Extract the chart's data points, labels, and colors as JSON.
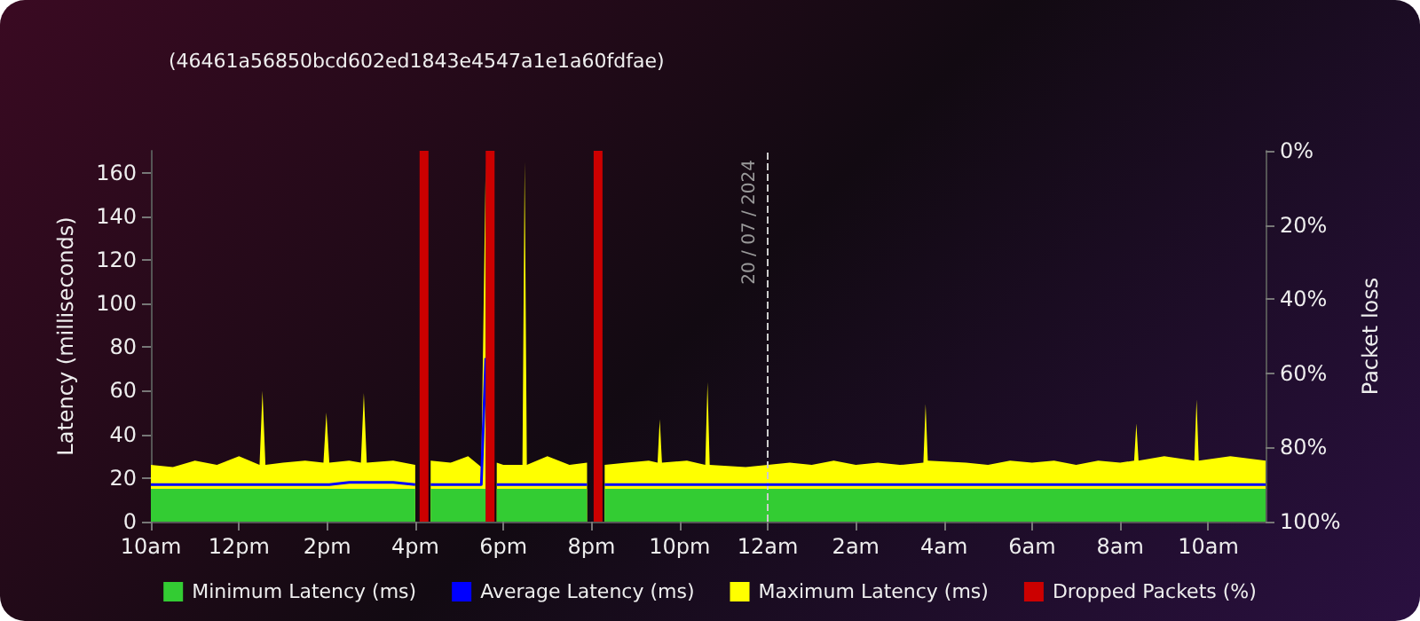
{
  "chart_data": {
    "type": "area",
    "subtitle": "(46461a56850bcd602ed1843e4547a1e1a60fdfae)",
    "ylabel": "Latency (milliseconds)",
    "y2label": "Packet loss",
    "x": [
      "2024-07-19T10:00",
      "2024-07-19T10:30",
      "2024-07-19T11:00",
      "2024-07-19T11:30",
      "2024-07-19T12:00",
      "2024-07-19T12:28",
      "2024-07-19T12:32",
      "2024-07-19T12:36",
      "2024-07-19T13:00",
      "2024-07-19T13:30",
      "2024-07-19T13:55",
      "2024-07-19T13:59",
      "2024-07-19T14:03",
      "2024-07-19T14:30",
      "2024-07-19T14:46",
      "2024-07-19T14:50",
      "2024-07-19T14:54",
      "2024-07-19T15:30",
      "2024-07-19T16:00",
      "2024-07-19T16:12",
      "2024-07-19T16:21",
      "2024-07-19T16:48",
      "2024-07-19T17:12",
      "2024-07-19T17:30",
      "2024-07-19T17:36",
      "2024-07-19T17:42",
      "2024-07-19T17:51",
      "2024-07-19T18:00",
      "2024-07-19T18:26",
      "2024-07-19T18:29",
      "2024-07-19T18:32",
      "2024-07-19T19:00",
      "2024-07-19T19:30",
      "2024-07-19T19:54",
      "2024-07-19T20:09",
      "2024-07-19T20:18",
      "2024-07-19T20:48",
      "2024-07-19T21:18",
      "2024-07-19T21:30",
      "2024-07-19T21:33",
      "2024-07-19T21:36",
      "2024-07-19T22:10",
      "2024-07-19T22:35",
      "2024-07-19T22:38",
      "2024-07-19T22:41",
      "2024-07-19T23:30",
      "2024-07-20T00:00",
      "2024-07-20T00:30",
      "2024-07-20T01:00",
      "2024-07-20T01:30",
      "2024-07-20T02:00",
      "2024-07-20T02:30",
      "2024-07-20T03:00",
      "2024-07-20T03:32",
      "2024-07-20T03:35",
      "2024-07-20T03:38",
      "2024-07-20T04:30",
      "2024-07-20T05:00",
      "2024-07-20T05:30",
      "2024-07-20T06:00",
      "2024-07-20T06:30",
      "2024-07-20T07:00",
      "2024-07-20T07:30",
      "2024-07-20T08:00",
      "2024-07-20T08:19",
      "2024-07-20T08:22",
      "2024-07-20T08:25",
      "2024-07-20T09:00",
      "2024-07-20T09:41",
      "2024-07-20T09:44",
      "2024-07-20T09:47",
      "2024-07-20T10:30",
      "2024-07-20T11:18"
    ],
    "series": [
      {
        "name": "Minimum Latency (ms)",
        "color": "#33cc33",
        "values": [
          15,
          15,
          15,
          15,
          15,
          15,
          15,
          15,
          15,
          15,
          15,
          15,
          15,
          15,
          15,
          15,
          15,
          15,
          15,
          null,
          15,
          15,
          15,
          15,
          15,
          null,
          15,
          15,
          15,
          15,
          15,
          15,
          15,
          15,
          null,
          15,
          15,
          15,
          15,
          15,
          15,
          15,
          15,
          15,
          15,
          15,
          15,
          15,
          15,
          15,
          15,
          15,
          15,
          15,
          15,
          15,
          15,
          15,
          15,
          15,
          15,
          15,
          15,
          15,
          15,
          15,
          15,
          15,
          15,
          15,
          15,
          15,
          15
        ]
      },
      {
        "name": "Average Latency (ms)",
        "type": "line",
        "color": "#0000ff",
        "values": [
          17,
          17,
          17,
          17,
          17,
          17,
          17,
          17,
          17,
          17,
          17,
          17,
          17,
          18,
          18,
          18,
          18,
          18,
          17,
          null,
          17,
          17,
          17,
          17,
          75,
          null,
          17,
          17,
          17,
          17,
          17,
          17,
          17,
          17,
          null,
          17,
          17,
          17,
          17,
          17,
          17,
          17,
          17,
          17,
          17,
          17,
          17,
          17,
          17,
          17,
          17,
          17,
          17,
          17,
          17,
          17,
          17,
          17,
          17,
          17,
          17,
          17,
          17,
          17,
          17,
          17,
          17,
          17,
          17,
          17,
          17,
          17,
          17
        ]
      },
      {
        "name": "Maximum Latency (ms)",
        "color": "#ffff00",
        "values": [
          26,
          25,
          28,
          26,
          30,
          26,
          60,
          26,
          27,
          28,
          27,
          50,
          27,
          28,
          27,
          59,
          27,
          28,
          26,
          null,
          28,
          27,
          30,
          25,
          165,
          null,
          27,
          26,
          26,
          165,
          26,
          30,
          26,
          27,
          null,
          26,
          27,
          28,
          27,
          47,
          27,
          28,
          26,
          64,
          26,
          25,
          26,
          27,
          26,
          28,
          26,
          27,
          26,
          27,
          54,
          28,
          27,
          26,
          28,
          27,
          28,
          26,
          28,
          27,
          28,
          45,
          28,
          30,
          28,
          56,
          28,
          30,
          28
        ]
      },
      {
        "name": "Dropped Packets (%)",
        "type": "bar",
        "axis": "y2",
        "color": "#cc0000",
        "x": [
          "2024-07-19T16:12",
          "2024-07-19T17:42",
          "2024-07-19T20:09"
        ],
        "values": [
          100,
          100,
          100
        ]
      }
    ],
    "xlim": [
      "2024-07-19T10:00",
      "2024-07-20T11:18"
    ],
    "xticks": [
      {
        "value": "2024-07-19T10:00",
        "label": "10am"
      },
      {
        "value": "2024-07-19T12:00",
        "label": "12pm"
      },
      {
        "value": "2024-07-19T14:00",
        "label": "2pm"
      },
      {
        "value": "2024-07-19T16:00",
        "label": "4pm"
      },
      {
        "value": "2024-07-19T18:00",
        "label": "6pm"
      },
      {
        "value": "2024-07-19T20:00",
        "label": "8pm"
      },
      {
        "value": "2024-07-19T22:00",
        "label": "10pm"
      },
      {
        "value": "2024-07-20T00:00",
        "label": "12am"
      },
      {
        "value": "2024-07-20T02:00",
        "label": "2am"
      },
      {
        "value": "2024-07-20T04:00",
        "label": "4am"
      },
      {
        "value": "2024-07-20T06:00",
        "label": "6am"
      },
      {
        "value": "2024-07-20T08:00",
        "label": "8am"
      },
      {
        "value": "2024-07-20T10:00",
        "label": "10am"
      }
    ],
    "ylim": [
      0,
      170
    ],
    "yticks": [
      0,
      20,
      40,
      60,
      80,
      100,
      120,
      140,
      160
    ],
    "y2lim": [
      100,
      0
    ],
    "y2ticks": [
      {
        "value": 0,
        "label": "0%"
      },
      {
        "value": 20,
        "label": "20%"
      },
      {
        "value": 40,
        "label": "40%"
      },
      {
        "value": 60,
        "label": "60%"
      },
      {
        "value": 80,
        "label": "80%"
      },
      {
        "value": 100,
        "label": "100%"
      }
    ],
    "ref_lines": [
      {
        "axis": "x",
        "value": "2024-07-20T00:00",
        "label": "20 / 07 / 2024",
        "line_style": "dashed",
        "color": "#cccccc"
      }
    ],
    "legend": "bottom",
    "grid": false
  }
}
